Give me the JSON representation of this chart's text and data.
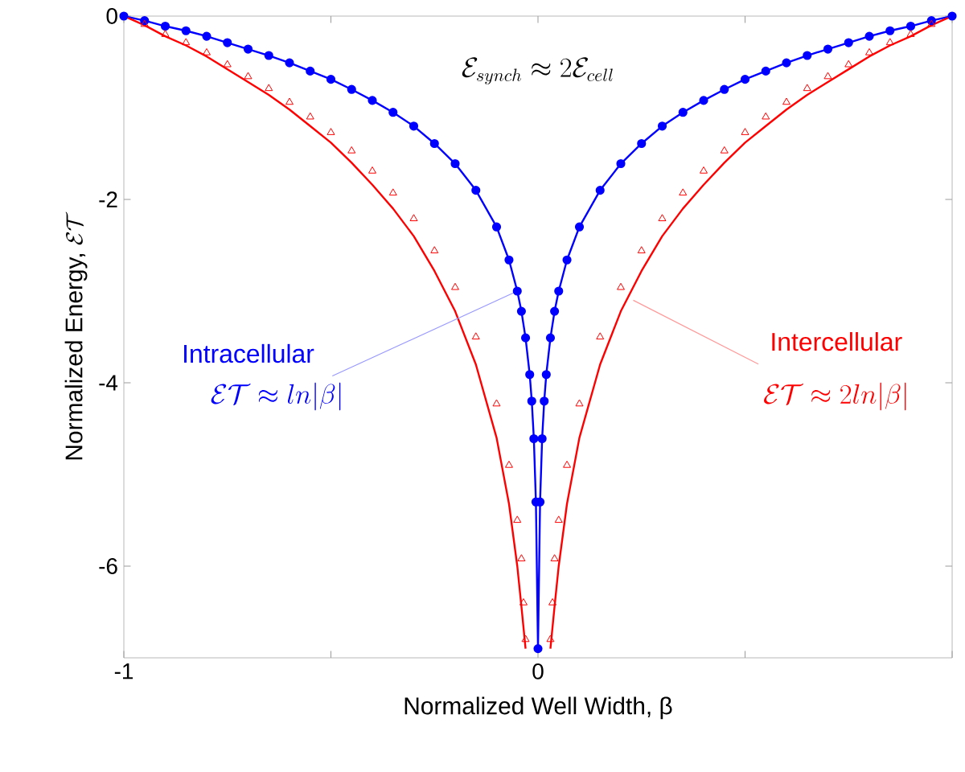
{
  "chart_data": {
    "type": "line",
    "xlabel": "Normalized Well Width, β",
    "ylabel": "\\mbox{Normalized Energy, }\\mathcal{E}\\mathcal{T}",
    "xlim": [
      -1,
      1
    ],
    "ylim": [
      -7,
      0
    ],
    "xticks": [
      -1,
      {
        "value": -0.5,
        "label": null
      },
      0,
      {
        "value": 0.5,
        "label": null
      },
      {
        "value": 1,
        "label": null
      }
    ],
    "yticks": [
      -6,
      -4,
      -2,
      0
    ],
    "series": [
      {
        "color": "#0000ff",
        "marker": "circle",
        "x": [
          -1,
          -0.95,
          -0.9,
          -0.85,
          -0.8,
          -0.75,
          -0.7,
          -0.65,
          -0.6,
          -0.55,
          -0.5,
          -0.45,
          -0.4,
          -0.35,
          -0.3,
          -0.25,
          -0.2,
          -0.15,
          -0.1,
          -0.07,
          -0.05,
          -0.04,
          -0.03,
          -0.02,
          -0.015,
          -0.01,
          -0.005,
          0,
          0.005,
          0.01,
          0.015,
          0.02,
          0.03,
          0.04,
          0.05,
          0.07,
          0.1,
          0.15,
          0.2,
          0.25,
          0.3,
          0.35,
          0.4,
          0.45,
          0.5,
          0.55,
          0.6,
          0.65,
          0.7,
          0.75,
          0.8,
          0.85,
          0.9,
          0.95,
          1
        ],
        "values": [
          0,
          -0.05,
          -0.11,
          -0.16,
          -0.22,
          -0.29,
          -0.36,
          -0.43,
          -0.51,
          -0.6,
          -0.69,
          -0.8,
          -0.92,
          -1.05,
          -1.2,
          -1.39,
          -1.61,
          -1.9,
          -2.3,
          -2.66,
          -3.0,
          -3.22,
          -3.51,
          -3.91,
          -4.2,
          -4.61,
          -5.3,
          -6.9,
          -5.3,
          -4.61,
          -4.2,
          -3.91,
          -3.51,
          -3.22,
          -3.0,
          -2.66,
          -2.3,
          -1.9,
          -1.61,
          -1.39,
          -1.2,
          -1.05,
          -0.92,
          -0.8,
          -0.69,
          -0.6,
          -0.51,
          -0.43,
          -0.36,
          -0.29,
          -0.22,
          -0.16,
          -0.11,
          -0.05,
          0
        ]
      },
      {
        "color": "#ff0000",
        "marker": "none",
        "x": [
          -1,
          -0.95,
          -0.9,
          -0.85,
          -0.8,
          -0.75,
          -0.7,
          -0.65,
          -0.6,
          -0.55,
          -0.5,
          -0.45,
          -0.4,
          -0.35,
          -0.3,
          -0.25,
          -0.2,
          -0.15,
          -0.1,
          -0.07,
          -0.05,
          -0.04,
          -0.03,
          0,
          0.03,
          0.04,
          0.05,
          0.07,
          0.1,
          0.15,
          0.2,
          0.25,
          0.3,
          0.35,
          0.4,
          0.45,
          0.5,
          0.55,
          0.6,
          0.65,
          0.7,
          0.75,
          0.8,
          0.85,
          0.9,
          0.95,
          1
        ],
        "values": [
          0,
          -0.1,
          -0.22,
          -0.32,
          -0.44,
          -0.58,
          -0.72,
          -0.86,
          -1.02,
          -1.2,
          -1.38,
          -1.6,
          -1.84,
          -2.1,
          -2.4,
          -2.78,
          -3.22,
          -3.8,
          -4.6,
          -5.32,
          -6.0,
          -6.44,
          -6.9,
          null,
          -6.9,
          -6.44,
          -6.0,
          -5.32,
          -4.6,
          -3.8,
          -3.22,
          -2.78,
          -2.4,
          -2.1,
          -1.84,
          -1.6,
          -1.38,
          -1.2,
          -1.02,
          -0.86,
          -0.72,
          -0.58,
          -0.44,
          -0.32,
          -0.22,
          -0.1,
          0
        ]
      },
      {
        "type": "scatter",
        "color": "#ff0000",
        "marker": "triangle",
        "x": [
          -0.95,
          -0.9,
          -0.85,
          -0.8,
          -0.75,
          -0.7,
          -0.65,
          -0.6,
          -0.55,
          -0.5,
          -0.45,
          -0.4,
          -0.35,
          -0.3,
          -0.25,
          -0.2,
          -0.15,
          -0.1,
          -0.07,
          -0.05,
          -0.04,
          -0.035,
          -0.03,
          0.03,
          0.035,
          0.04,
          0.05,
          0.07,
          0.1,
          0.15,
          0.2,
          0.25,
          0.3,
          0.35,
          0.4,
          0.45,
          0.5,
          0.55,
          0.6,
          0.65,
          0.7,
          0.75,
          0.8,
          0.85,
          0.9,
          0.95
        ],
        "values": [
          -0.09,
          -0.2,
          -0.29,
          -0.4,
          -0.53,
          -0.66,
          -0.79,
          -0.94,
          -1.1,
          -1.27,
          -1.47,
          -1.69,
          -1.93,
          -2.21,
          -2.56,
          -2.96,
          -3.5,
          -4.23,
          -4.9,
          -5.5,
          -5.92,
          -6.4,
          -6.8,
          -6.8,
          -6.4,
          -5.92,
          -5.5,
          -4.9,
          -4.23,
          -3.5,
          -2.96,
          -2.56,
          -2.21,
          -1.93,
          -1.69,
          -1.47,
          -1.27,
          -1.1,
          -0.94,
          -0.79,
          -0.66,
          -0.53,
          -0.4,
          -0.29,
          -0.2,
          -0.09
        ]
      }
    ],
    "annotations": [
      {
        "text": "Intracellular",
        "x": -0.05,
        "y": -3.0
      },
      "\\mathcal{E}\\mathcal{T} \\approx ln|\\beta|",
      {
        "text": "Intercellular",
        "x": 0.23,
        "y": -3.1
      },
      "\\mathcal{E}\\mathcal{T} \\approx 2ln|\\beta|",
      "\\mathcal{E}_{synch} \\approx 2\\mathcal{E}_{cell}"
    ]
  }
}
